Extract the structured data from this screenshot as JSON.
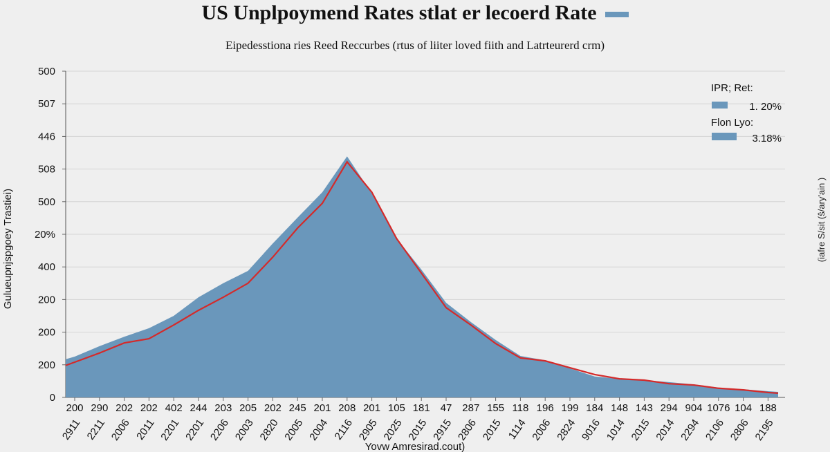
{
  "chart_data": {
    "type": "area",
    "title": "US Unplpoymend Rates stlat er lecoerd Rate",
    "subtitle": "Eipedesstiona ries Reed Reccurbes (rtus of liiter loved fiith and Latrteurerd crm)",
    "xlabel": "Yovw Amresirad.cout)",
    "ylabel": "Gulueupnjspgoey Trastiei)",
    "y2label": "(iafre S/sit (ŝ/ary'ain )",
    "grid": true,
    "legend_placement": "top-right",
    "ytick_labels": [
      "0",
      "200",
      "200",
      "200",
      "400",
      "20%",
      "500",
      "508",
      "446",
      "507",
      "500"
    ],
    "ylim": [
      0,
      10
    ],
    "categories": [
      "200",
      "290",
      "202",
      "202",
      "402",
      "244",
      "203",
      "205",
      "202",
      "245",
      "201",
      "208",
      "201",
      "105",
      "181",
      "47",
      "287",
      "155",
      "118",
      "196",
      "199",
      "184",
      "148",
      "143",
      "294",
      "904",
      "1076",
      "104",
      "188"
    ],
    "categories_secondary": [
      "2911",
      "2211",
      "2006",
      "2011",
      "2201",
      "2201",
      "2206",
      "2003",
      "2820",
      "2005",
      "2004",
      "2116",
      "2905",
      "2025",
      "2015",
      "2915",
      "2806",
      "2015",
      "1114",
      "2006",
      "2824",
      "9016",
      "1014",
      "2015",
      "2014",
      "2294",
      "2106",
      "2806",
      "2195"
    ],
    "series": [
      {
        "name": "IPR; Ret:",
        "legend_value": "1. 20%",
        "color": "#6a97bb",
        "kind": "area",
        "values": [
          1.25,
          1.57,
          1.86,
          2.12,
          2.5,
          3.07,
          3.5,
          3.88,
          4.72,
          5.51,
          6.29,
          7.39,
          6.25,
          4.87,
          3.92,
          2.9,
          2.31,
          1.76,
          1.27,
          1.14,
          0.89,
          0.64,
          0.57,
          0.53,
          0.47,
          0.4,
          0.3,
          0.25,
          0.19
        ]
      },
      {
        "name": "Flon Lyo:",
        "legend_value": "3.18%",
        "color": "#d42a2a",
        "kind": "line",
        "values": [
          1.08,
          1.36,
          1.67,
          1.8,
          2.22,
          2.67,
          3.07,
          3.5,
          4.3,
          5.19,
          5.95,
          7.22,
          6.29,
          4.87,
          3.81,
          2.75,
          2.22,
          1.65,
          1.21,
          1.12,
          0.91,
          0.7,
          0.57,
          0.53,
          0.42,
          0.38,
          0.28,
          0.23,
          0.15
        ]
      }
    ],
    "legend_swatch_color": "#6a97bb"
  }
}
